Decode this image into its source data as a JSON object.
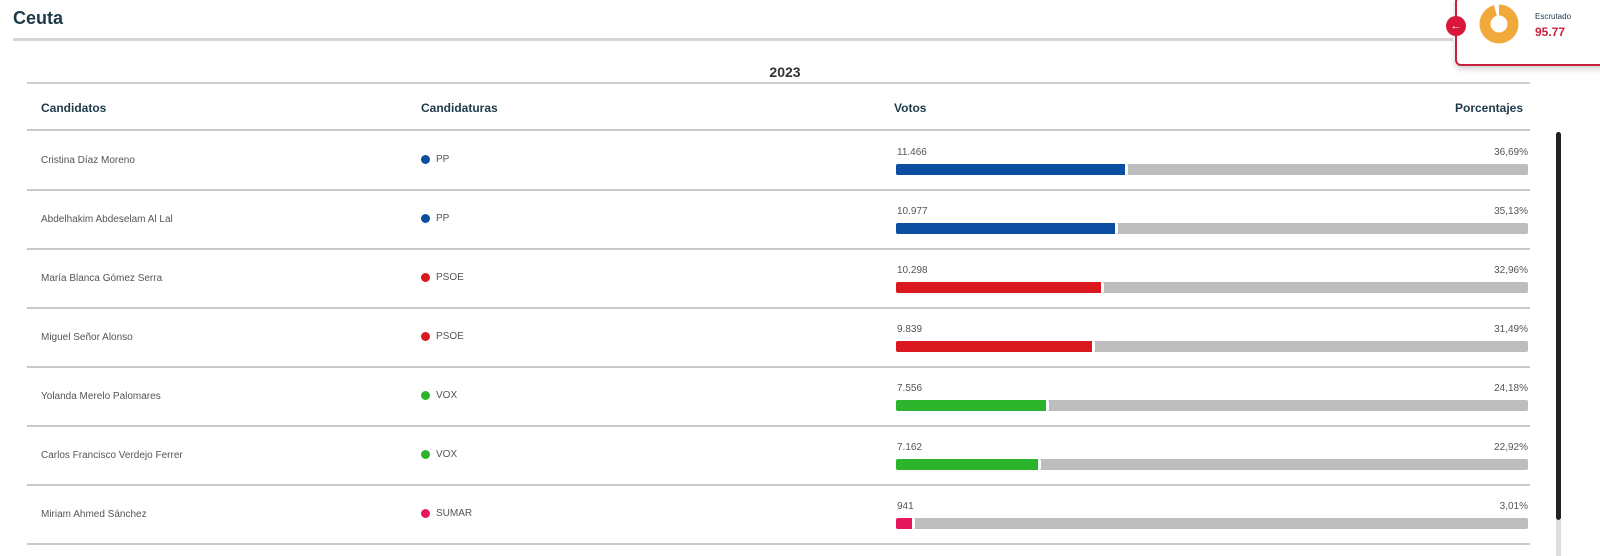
{
  "header": {
    "title": "Ceuta"
  },
  "widget": {
    "toggle_icon": "←",
    "label": "Escrutado",
    "value": "95.77",
    "donut_color": "#f2a93b",
    "percent": 95.77
  },
  "table": {
    "year": "2023",
    "columns": [
      "Candidatos",
      "Candidaturas",
      "Votos",
      "Porcentajes"
    ],
    "rows": [
      {
        "candidate": "Cristina Díaz Moreno",
        "party": "PP",
        "color": "#0b4ea2",
        "votes": "11.466",
        "percent": "36,69%",
        "value": 36.69
      },
      {
        "candidate": "Abdelhakim Abdeselam Al Lal",
        "party": "PP",
        "color": "#0b4ea2",
        "votes": "10.977",
        "percent": "35,13%",
        "value": 35.13
      },
      {
        "candidate": "María Blanca Gómez Serra",
        "party": "PSOE",
        "color": "#d9181f",
        "votes": "10.298",
        "percent": "32,96%",
        "value": 32.96
      },
      {
        "candidate": "Miguel Señor Alonso",
        "party": "PSOE",
        "color": "#d9181f",
        "votes": "9.839",
        "percent": "31,49%",
        "value": 31.49
      },
      {
        "candidate": "Yolanda Merelo Palomares",
        "party": "VOX",
        "color": "#2cb52c",
        "votes": "7.556",
        "percent": "24,18%",
        "value": 24.18
      },
      {
        "candidate": "Carlos Francisco Verdejo Ferrer",
        "party": "VOX",
        "color": "#2cb52c",
        "votes": "7.162",
        "percent": "22,92%",
        "value": 22.92
      },
      {
        "candidate": "Miriam Ahmed Sánchez",
        "party": "SUMAR",
        "color": "#e8175d",
        "votes": "941",
        "percent": "3,01%",
        "value": 3.01
      }
    ]
  },
  "chart_data": {
    "type": "bar",
    "title": "Ceuta 2023",
    "categories": [
      "Cristina Díaz Moreno",
      "Abdelhakim Abdeselam Al Lal",
      "María Blanca Gómez Serra",
      "Miguel Señor Alonso",
      "Yolanda Merelo Palomares",
      "Carlos Francisco Verdejo Ferrer",
      "Miriam Ahmed Sánchez"
    ],
    "series": [
      {
        "name": "Votos",
        "values": [
          11466,
          10977,
          10298,
          9839,
          7556,
          7162,
          941
        ]
      },
      {
        "name": "Porcentajes",
        "values": [
          36.69,
          35.13,
          32.96,
          31.49,
          24.18,
          22.92,
          3.01
        ]
      }
    ],
    "parties": [
      "PP",
      "PP",
      "PSOE",
      "PSOE",
      "VOX",
      "VOX",
      "SUMAR"
    ],
    "xlabel": "",
    "ylabel": "",
    "ylim": [
      0,
      100
    ]
  }
}
